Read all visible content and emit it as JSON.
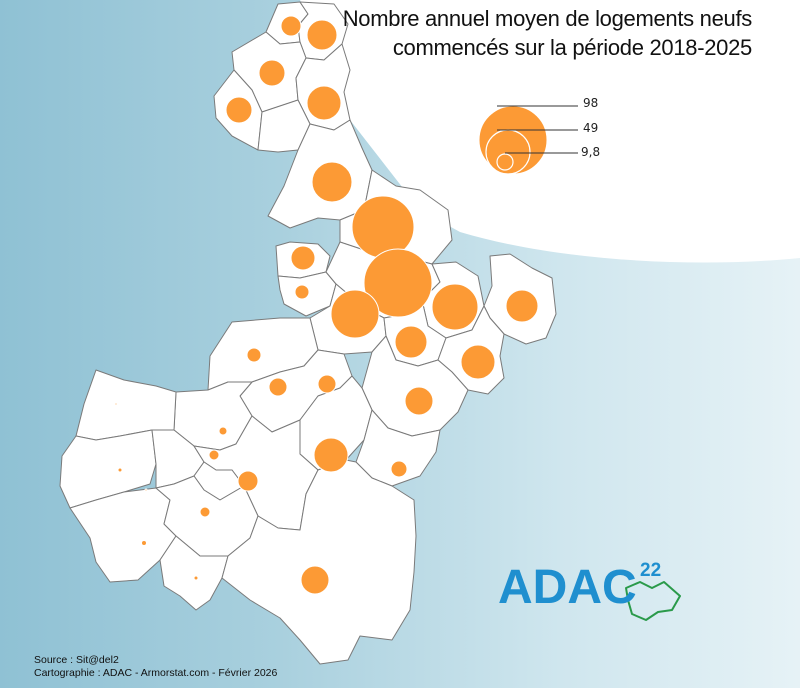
{
  "title": {
    "line1": "Nombre annuel moyen de logements neufs",
    "line2": "commencés sur la période 2018-2025"
  },
  "legend": {
    "values": [
      "98",
      "49",
      "9,8"
    ]
  },
  "source": {
    "line1": "Source : Sit@del2",
    "line2": "Cartographie : ADAC - Armorstat.com - Février 2026"
  },
  "logo": {
    "text": "ADAC",
    "number": "22"
  },
  "colors": {
    "symbol_fill": "#fc9a35",
    "commune_fill": "#ffffff",
    "commune_stroke": "#777777",
    "logo_blue": "#1f8fcf",
    "logo_green": "#2a9a4a"
  }
}
